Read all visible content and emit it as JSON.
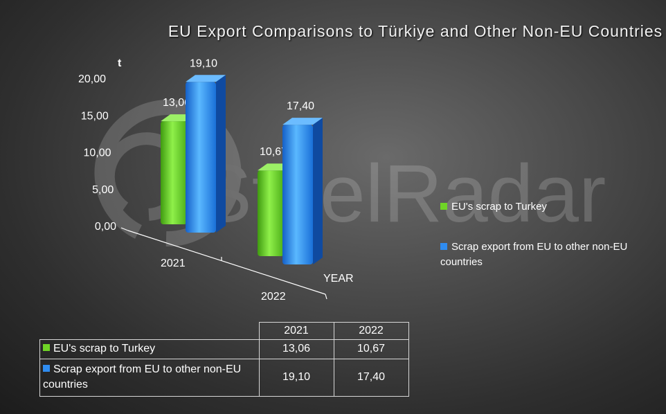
{
  "chart_data": {
    "type": "bar",
    "title": "EU Export Comparisons to Türkiye and Other Non-EU Countries",
    "ylabel": "t",
    "xlabel": "YEAR",
    "categories": [
      "2021",
      "2022"
    ],
    "series": [
      {
        "name": "EU's scrap to Turkey",
        "values": [
          13.06,
          10.67
        ],
        "labels": [
          "13,06",
          "10,67"
        ],
        "color": "#6fd426"
      },
      {
        "name": "Scrap export from EU to other non-EU countries",
        "values": [
          19.1,
          17.4
        ],
        "labels": [
          "19,10",
          "17,40"
        ],
        "color": "#2f8cf0"
      }
    ],
    "ylim": [
      0,
      20
    ],
    "yticks": [
      "0,00",
      "5,00",
      "10,00",
      "15,00",
      "20,00"
    ],
    "legend_position": "right",
    "grid": false,
    "watermark": "SteelRadar"
  },
  "table": {
    "header": [
      "2021",
      "2022"
    ],
    "rows": [
      {
        "label": "EU's scrap to Turkey",
        "values": [
          "13,06",
          "10,67"
        ],
        "color": "#6fd426"
      },
      {
        "label": "Scrap export from EU to other non-EU countries",
        "values": [
          "19,10",
          "17,40"
        ],
        "color": "#2f8cf0"
      }
    ]
  }
}
